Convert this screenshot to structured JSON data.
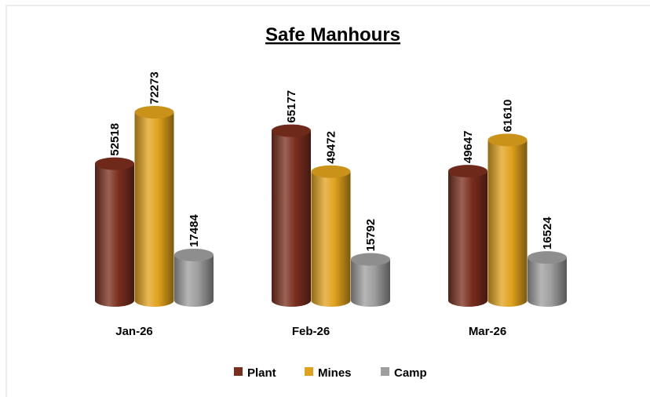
{
  "chart_data": {
    "type": "bar",
    "style": "3d-cylinder",
    "title": "Safe Manhours",
    "categories": [
      "Jan-26",
      "Feb-26",
      "Mar-26"
    ],
    "series": [
      {
        "name": "Plant",
        "color": "#7a2e1e",
        "values": [
          52518,
          65177,
          49647
        ]
      },
      {
        "name": "Mines",
        "color": "#e0a21c",
        "values": [
          72273,
          49472,
          61610
        ]
      },
      {
        "name": "Camp",
        "color": "#9e9e9e",
        "values": [
          17484,
          15792,
          16524
        ]
      }
    ],
    "legend": "bottom",
    "grid": false
  }
}
